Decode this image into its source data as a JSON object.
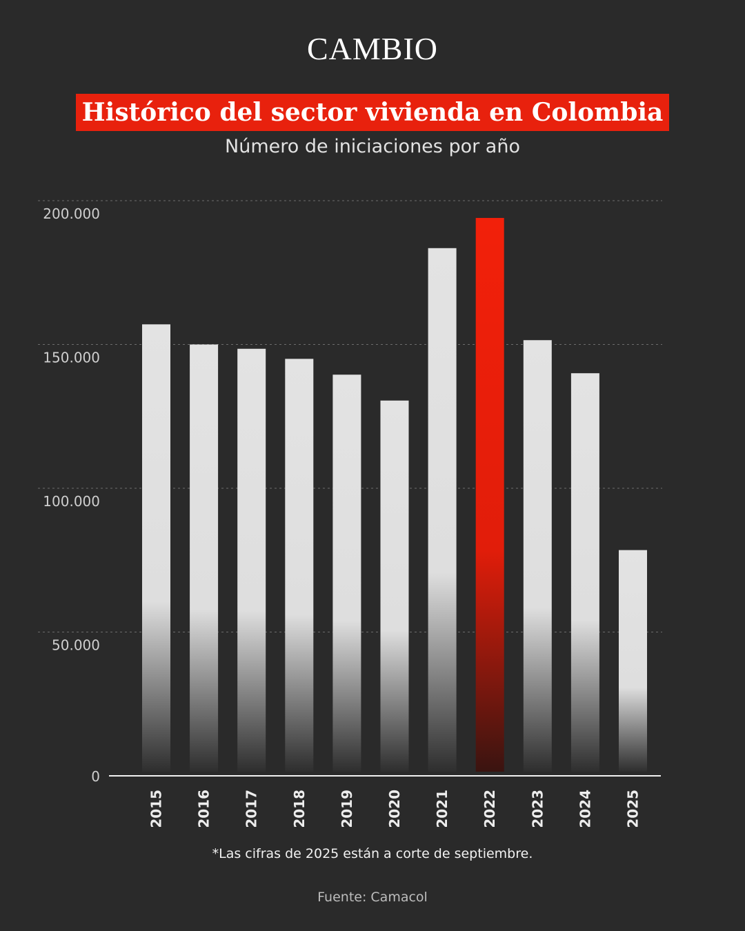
{
  "header": {
    "logo": "CAMBIO",
    "title": "Histórico del sector vivienda en Colombia",
    "subtitle": "Número de iniciaciones por año"
  },
  "footer": {
    "note": "*Las cifras de 2025 están a corte de septiembre.",
    "source": "Fuente: Camacol"
  },
  "colors": {
    "background": "#2a2a2a",
    "bar": "#e3e3e3",
    "highlight": "#f0200a",
    "title_box": "#e8210d"
  },
  "chart_data": {
    "type": "bar",
    "categories": [
      "2015",
      "2016",
      "2017",
      "2018",
      "2019",
      "2020",
      "2021",
      "2022",
      "2023",
      "2024",
      "2025"
    ],
    "values": [
      157000,
      150000,
      148500,
      145000,
      139500,
      130500,
      183500,
      194000,
      151500,
      140000,
      78500
    ],
    "highlight": "2022",
    "ylim": [
      0,
      200000
    ],
    "yticks": [
      0,
      50000,
      100000,
      150000,
      200000
    ],
    "ytick_labels": [
      "0",
      "50.000",
      "100.000",
      "150.000",
      "200.000"
    ],
    "grid": true
  }
}
